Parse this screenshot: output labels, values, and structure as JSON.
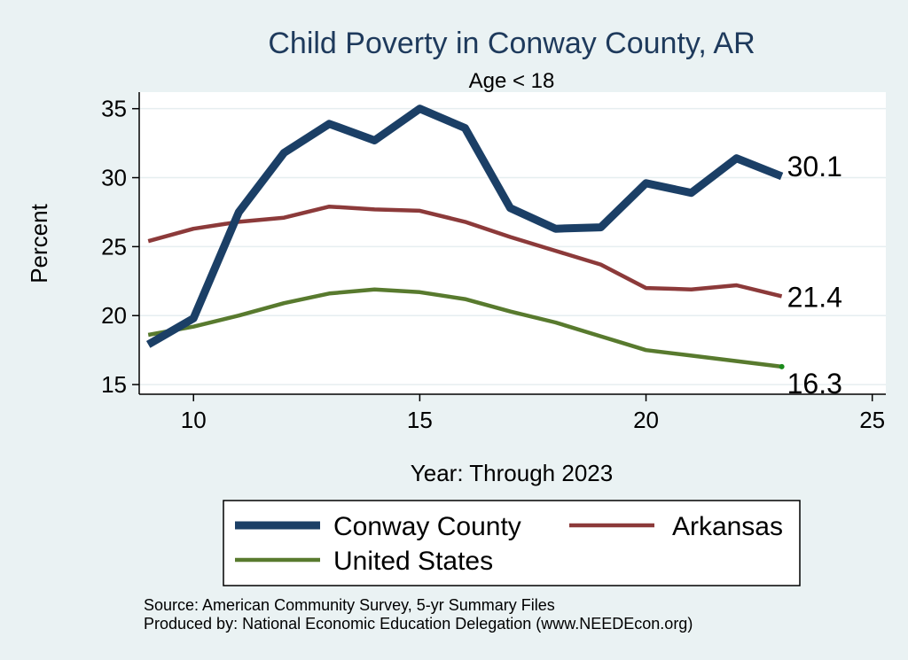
{
  "chart_data": {
    "type": "line",
    "title": "Child Poverty in Conway County, AR",
    "subtitle": "Age < 18",
    "xlabel": "Year: Through 2023",
    "ylabel": "Percent",
    "xlim": [
      8.8,
      25.3
    ],
    "ylim": [
      14.3,
      36.2
    ],
    "xticks": [
      10,
      15,
      20,
      25
    ],
    "yticks": [
      15,
      20,
      25,
      30,
      35
    ],
    "grid": true,
    "legend_position": "bottom",
    "x": [
      9,
      10,
      11,
      12,
      13,
      14,
      15,
      16,
      17,
      18,
      19,
      20,
      21,
      22,
      23
    ],
    "series": [
      {
        "name": "Conway County",
        "color": "#1b3f66",
        "width": "thick",
        "values": [
          17.9,
          19.8,
          27.5,
          31.8,
          33.9,
          32.7,
          35.0,
          33.6,
          27.8,
          26.3,
          26.4,
          29.6,
          28.9,
          31.4,
          30.1
        ],
        "end_label": "30.1"
      },
      {
        "name": "Arkansas",
        "color": "#8c3a3a",
        "width": "medium",
        "values": [
          25.4,
          26.3,
          26.8,
          27.1,
          27.9,
          27.7,
          27.6,
          26.8,
          25.7,
          24.7,
          23.7,
          22.0,
          21.9,
          22.2,
          21.4
        ],
        "end_label": "21.4"
      },
      {
        "name": "United States",
        "color": "#587a2e",
        "width": "medium",
        "values": [
          18.6,
          19.2,
          20.0,
          20.9,
          21.6,
          21.9,
          21.7,
          21.2,
          20.3,
          19.5,
          18.5,
          17.5,
          17.1,
          16.7,
          16.3
        ],
        "end_label": "16.3"
      }
    ],
    "source_lines": [
      "Source: American Community Survey, 5-yr Summary Files",
      "Produced by: National Economic Education Delegation (www.NEEDEcon.org)"
    ]
  }
}
